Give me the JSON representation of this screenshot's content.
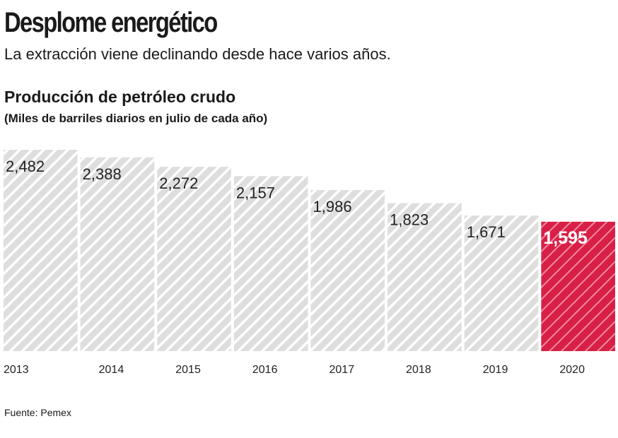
{
  "header": {
    "title": "Desplome energético",
    "subtitle": "La extracción viene declinando desde hace varios años."
  },
  "source": "Fuente: Pemex",
  "colors": {
    "bar": "#dedede",
    "bar_stripe": "#ffffff",
    "highlight": "#d81f45",
    "highlight_stripe": "#f08aa0"
  },
  "chart_data": {
    "type": "bar",
    "title": "Producción de petróleo crudo",
    "subtitle": "(Miles de barriles diarios en julio de cada año)",
    "categories": [
      "2013",
      "2014",
      "2015",
      "2016",
      "2017",
      "2018",
      "2019",
      "2020"
    ],
    "values": [
      2482,
      2388,
      2272,
      2157,
      1986,
      1823,
      1671,
      1595
    ],
    "labels": [
      "2,482",
      "2,388",
      "2,272",
      "2,157",
      "1,986",
      "1,823",
      "1,671",
      "1,595"
    ],
    "highlight_index": 7,
    "ylim": [
      0,
      2482
    ],
    "grid": false,
    "xlabel": "",
    "ylabel": ""
  }
}
